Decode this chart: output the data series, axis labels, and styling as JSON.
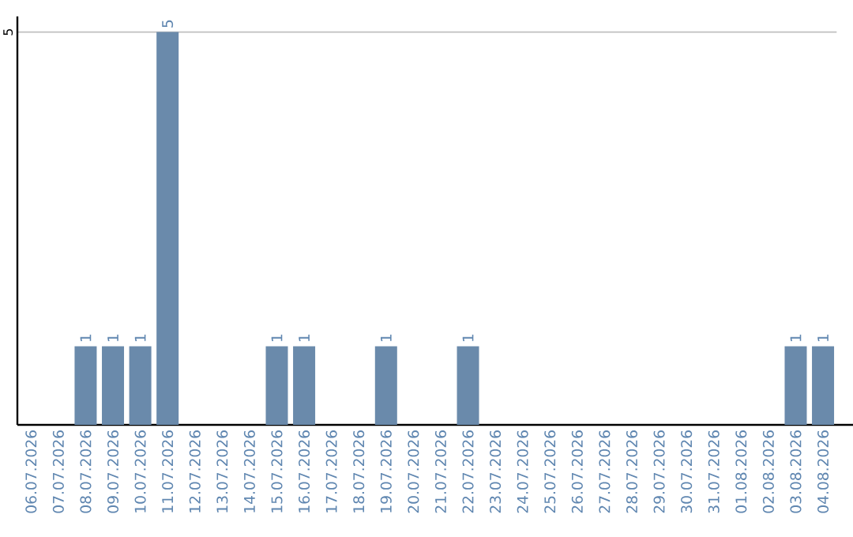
{
  "chart_data": {
    "type": "bar",
    "categories": [
      "06.07.2026",
      "07.07.2026",
      "08.07.2026",
      "09.07.2026",
      "10.07.2026",
      "11.07.2026",
      "12.07.2026",
      "13.07.2026",
      "14.07.2026",
      "15.07.2026",
      "16.07.2026",
      "17.07.2026",
      "18.07.2026",
      "19.07.2026",
      "20.07.2026",
      "21.07.2026",
      "22.07.2026",
      "23.07.2026",
      "24.07.2026",
      "25.07.2026",
      "26.07.2026",
      "27.07.2026",
      "28.07.2026",
      "29.07.2026",
      "30.07.2026",
      "31.07.2026",
      "01.08.2026",
      "02.08.2026",
      "03.08.2026",
      "04.08.2026"
    ],
    "values": [
      0,
      0,
      1,
      1,
      1,
      5,
      0,
      0,
      0,
      1,
      1,
      0,
      0,
      1,
      0,
      0,
      1,
      0,
      0,
      0,
      0,
      0,
      0,
      0,
      0,
      0,
      0,
      0,
      1,
      1
    ],
    "value_labels": [
      null,
      null,
      "1",
      "1",
      "1",
      "5",
      null,
      null,
      null,
      "1",
      "1",
      null,
      null,
      "1",
      null,
      null,
      "1",
      null,
      null,
      null,
      null,
      null,
      null,
      null,
      null,
      null,
      null,
      null,
      "1",
      "1"
    ],
    "color": "#6a8aab",
    "ylim": [
      0,
      5.2
    ],
    "yticks": [
      5
    ],
    "grid": "y"
  }
}
